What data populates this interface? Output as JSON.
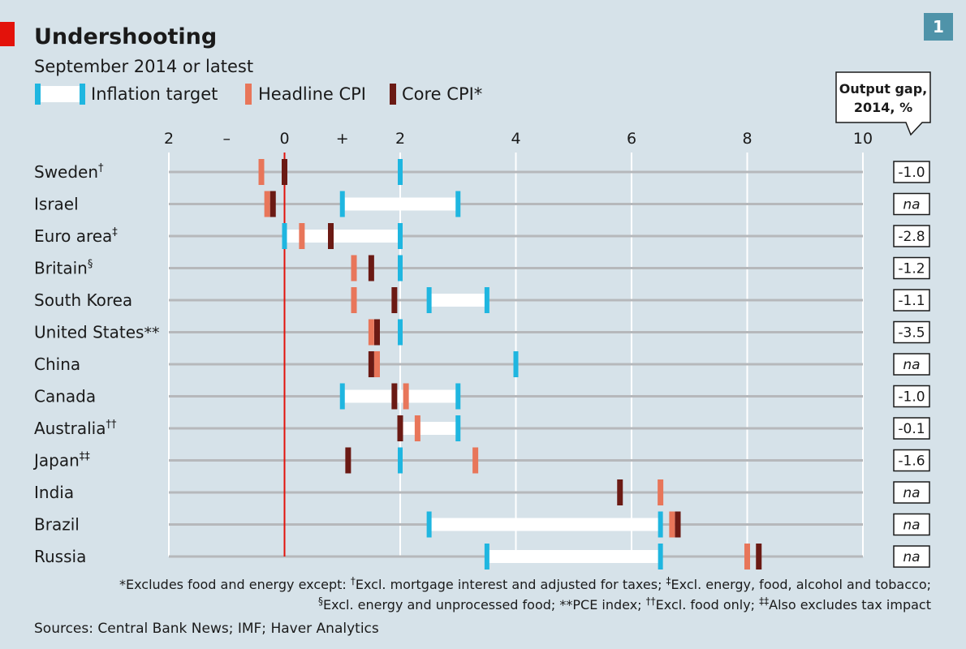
{
  "header": {
    "title": "Undershooting",
    "subtitle": "September 2014 or latest",
    "badge": "1"
  },
  "legend": {
    "target": "Inflation target",
    "headline": "Headline CPI",
    "core": "Core CPI*"
  },
  "axis": {
    "ticks": [
      {
        "value": -2,
        "label": "2"
      },
      {
        "value": -1,
        "label": "–"
      },
      {
        "value": 0,
        "label": "0"
      },
      {
        "value": 1,
        "label": "+"
      },
      {
        "value": 2,
        "label": "2"
      },
      {
        "value": 4,
        "label": "4"
      },
      {
        "value": 6,
        "label": "6"
      },
      {
        "value": 8,
        "label": "8"
      },
      {
        "value": 10,
        "label": "10"
      }
    ]
  },
  "output_gap": {
    "header_line1": "Output gap,",
    "header_line2": "2014, %"
  },
  "colors": {
    "background": "#d6e2e9",
    "target": "#1fb6e0",
    "headline": "#e8765a",
    "core": "#6b1a14",
    "zero_line": "#e3120b",
    "track": "#b6b8bb",
    "badge": "#4f93a9",
    "accent": "#e3120b"
  },
  "chart_data": {
    "type": "range-dot",
    "x_range": [
      -2,
      10
    ],
    "countries": [
      {
        "name": "Sweden",
        "mark": "†",
        "target": [
          2,
          2
        ],
        "headline": -0.4,
        "core": 0.0,
        "output_gap": "-1.0"
      },
      {
        "name": "Israel",
        "mark": "",
        "target": [
          1,
          3
        ],
        "headline": -0.3,
        "core": -0.2,
        "output_gap": "na"
      },
      {
        "name": "Euro area",
        "mark": "‡",
        "target": [
          0,
          2
        ],
        "headline": 0.3,
        "core": 0.8,
        "output_gap": "-2.8"
      },
      {
        "name": "Britain",
        "mark": "§",
        "target": [
          2,
          2
        ],
        "headline": 1.2,
        "core": 1.5,
        "output_gap": "-1.2"
      },
      {
        "name": "South Korea",
        "mark": "",
        "target": [
          2.5,
          3.5
        ],
        "headline": 1.2,
        "core": 1.9,
        "output_gap": "-1.1"
      },
      {
        "name": "United States",
        "mark": "**",
        "target": [
          2,
          2
        ],
        "headline": 1.5,
        "core": 1.6,
        "output_gap": "-3.5"
      },
      {
        "name": "China",
        "mark": "",
        "target": [
          4,
          4
        ],
        "headline": 1.6,
        "core": 1.5,
        "output_gap": "na"
      },
      {
        "name": "Canada",
        "mark": "",
        "target": [
          1,
          3
        ],
        "headline": 2.1,
        "core": 1.9,
        "output_gap": "-1.0"
      },
      {
        "name": "Australia",
        "mark": "††",
        "target": [
          2,
          3
        ],
        "headline": 2.3,
        "core": 2.0,
        "output_gap": "-0.1"
      },
      {
        "name": "Japan",
        "mark": "‡‡",
        "target": [
          2,
          2
        ],
        "headline": 3.3,
        "core": 1.1,
        "output_gap": "-1.6"
      },
      {
        "name": "India",
        "mark": "",
        "target": null,
        "headline": 6.5,
        "core": 5.8,
        "output_gap": "na"
      },
      {
        "name": "Brazil",
        "mark": "",
        "target": [
          2.5,
          6.5
        ],
        "headline": 6.7,
        "core": 6.8,
        "output_gap": "na"
      },
      {
        "name": "Russia",
        "mark": "",
        "target": [
          3.5,
          6.5
        ],
        "headline": 8.0,
        "core": 8.2,
        "output_gap": "na"
      }
    ]
  },
  "footnotes": {
    "line1": [
      {
        "text": "*Excludes food and energy except: "
      },
      {
        "text": "†",
        "sup": true
      },
      {
        "text": "Excl. mortgage interest and adjusted for taxes; "
      },
      {
        "text": "‡",
        "sup": true
      },
      {
        "text": "Excl. energy, food, alcohol and tobacco;"
      }
    ],
    "line2": [
      {
        "text": "§",
        "sup": true
      },
      {
        "text": "Excl. energy and unprocessed food; **PCE index; "
      },
      {
        "text": "††",
        "sup": true
      },
      {
        "text": "Excl. food only; "
      },
      {
        "text": "‡‡",
        "sup": true
      },
      {
        "text": "Also excludes tax impact"
      }
    ]
  },
  "sources": "Sources: Central Bank News; IMF; Haver Analytics"
}
